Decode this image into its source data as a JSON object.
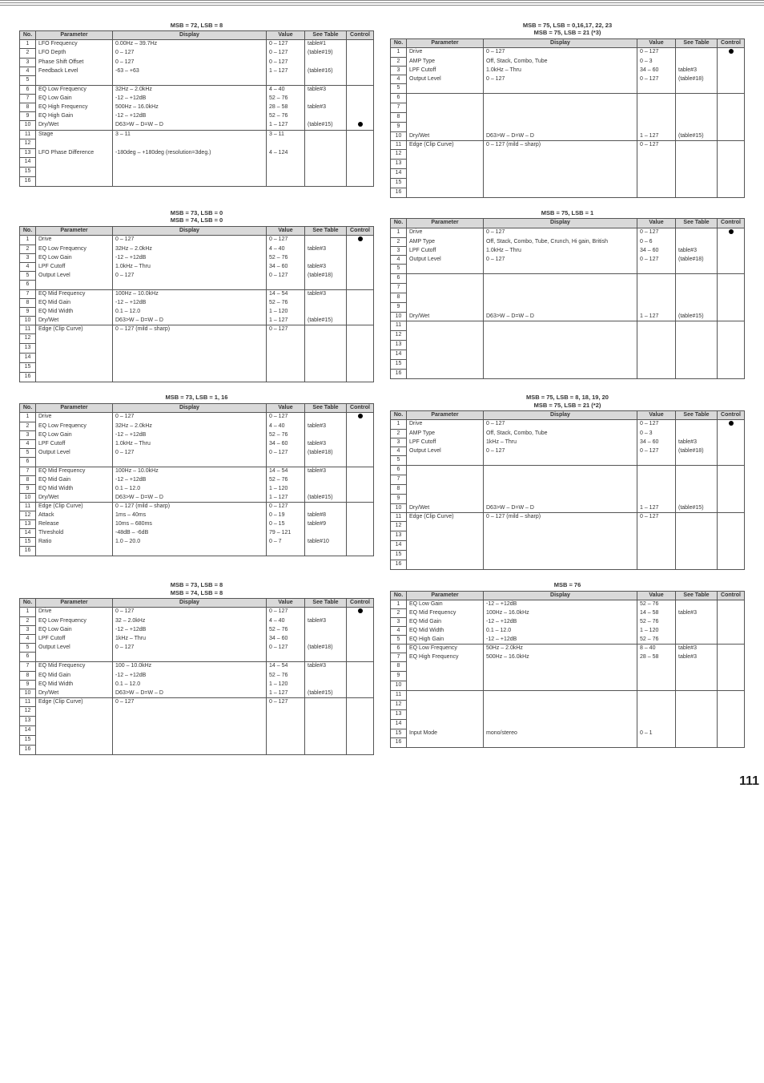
{
  "page_number": "111",
  "hdr": {
    "no": "No.",
    "param": "Parameter",
    "display": "Display",
    "value": "Value",
    "see": "See Table",
    "ctrl": "Control"
  },
  "t72_8": {
    "title": "MSB = 72, LSB = 8",
    "rows": [
      {
        "n": "1",
        "p": "LFO Frequency",
        "d": "0.00Hz – 39.7Hz",
        "v": "0 – 127",
        "s": "table#1",
        "c": ""
      },
      {
        "n": "2",
        "p": "LFO Depth",
        "d": "0 – 127",
        "v": "0 – 127",
        "s": "(table#19)",
        "c": ""
      },
      {
        "n": "3",
        "p": "Phase Shift Offset",
        "d": "0 – 127",
        "v": "0 – 127",
        "s": "",
        "c": ""
      },
      {
        "n": "4",
        "p": "Feedback Level",
        "d": "-63 – +63",
        "v": "1 – 127",
        "s": "(table#16)",
        "c": ""
      },
      {
        "n": "5",
        "p": "",
        "d": "",
        "v": "",
        "s": "",
        "c": "",
        "sep": true
      },
      {
        "n": "6",
        "p": "EQ Low Frequency",
        "d": "32Hz – 2.0kHz",
        "v": "4 – 40",
        "s": "table#3",
        "c": ""
      },
      {
        "n": "7",
        "p": "EQ Low Gain",
        "d": "-12 – +12dB",
        "v": "52 – 76",
        "s": "",
        "c": ""
      },
      {
        "n": "8",
        "p": "EQ High Frequency",
        "d": "500Hz – 16.0kHz",
        "v": "28 – 58",
        "s": "table#3",
        "c": ""
      },
      {
        "n": "9",
        "p": "EQ High Gain",
        "d": "-12 – +12dB",
        "v": "52 – 76",
        "s": "",
        "c": ""
      },
      {
        "n": "10",
        "p": "Dry/Wet",
        "d": "D63>W – D=W – D<W63",
        "v": "1 – 127",
        "s": "(table#15)",
        "c": "●",
        "sep": true
      },
      {
        "n": "11",
        "p": "Stage",
        "d": "3 – 11",
        "v": "3 – 11",
        "s": "",
        "c": ""
      },
      {
        "n": "12",
        "p": "",
        "d": "",
        "v": "",
        "s": "",
        "c": ""
      },
      {
        "n": "13",
        "p": "LFO Phase Difference",
        "d": "-180deg – +180deg (resolution=3deg.)",
        "v": "4 – 124",
        "s": "",
        "c": ""
      },
      {
        "n": "14",
        "p": "",
        "d": "",
        "v": "",
        "s": "",
        "c": ""
      },
      {
        "n": "15",
        "p": "",
        "d": "",
        "v": "",
        "s": "",
        "c": ""
      },
      {
        "n": "16",
        "p": "",
        "d": "",
        "v": "",
        "s": "",
        "c": ""
      }
    ]
  },
  "t75_0_16": {
    "title1": "MSB = 75, LSB = 0,16,17, 22, 23",
    "title2": "MSB = 75, LSB = 21 (*3)",
    "rows": [
      {
        "n": "1",
        "p": "Drive",
        "d": "0 – 127",
        "v": "0 – 127",
        "s": "",
        "c": "●"
      },
      {
        "n": "2",
        "p": "AMP Type",
        "d": "Off, Stack, Combo, Tube",
        "v": "0 – 3",
        "s": "",
        "c": ""
      },
      {
        "n": "3",
        "p": "LPF Cutoff",
        "d": "1.0kHz – Thru",
        "v": "34 – 60",
        "s": "table#3",
        "c": ""
      },
      {
        "n": "4",
        "p": "Output Level",
        "d": "0 – 127",
        "v": "0 – 127",
        "s": "(table#18)",
        "c": ""
      },
      {
        "n": "5",
        "p": "",
        "d": "",
        "v": "",
        "s": "",
        "c": "",
        "sep": true
      },
      {
        "n": "6",
        "p": "",
        "d": "",
        "v": "",
        "s": "",
        "c": ""
      },
      {
        "n": "7",
        "p": "",
        "d": "",
        "v": "",
        "s": "",
        "c": ""
      },
      {
        "n": "8",
        "p": "",
        "d": "",
        "v": "",
        "s": "",
        "c": ""
      },
      {
        "n": "9",
        "p": "",
        "d": "",
        "v": "",
        "s": "",
        "c": ""
      },
      {
        "n": "10",
        "p": "Dry/Wet",
        "d": "D63>W – D=W – D<W63",
        "v": "1 – 127",
        "s": "(table#15)",
        "c": "",
        "sep": true
      },
      {
        "n": "11",
        "p": "Edge (Clip Curve)",
        "d": "0 – 127 (mild – sharp)",
        "v": "0 – 127",
        "s": "",
        "c": ""
      },
      {
        "n": "12",
        "p": "",
        "d": "",
        "v": "",
        "s": "",
        "c": ""
      },
      {
        "n": "13",
        "p": "",
        "d": "",
        "v": "",
        "s": "",
        "c": ""
      },
      {
        "n": "14",
        "p": "",
        "d": "",
        "v": "",
        "s": "",
        "c": ""
      },
      {
        "n": "15",
        "p": "",
        "d": "",
        "v": "",
        "s": "",
        "c": ""
      },
      {
        "n": "16",
        "p": "",
        "d": "",
        "v": "",
        "s": "",
        "c": ""
      }
    ]
  },
  "t73_0": {
    "title1": "MSB = 73, LSB = 0",
    "title2": "MSB = 74, LSB = 0",
    "rows": [
      {
        "n": "1",
        "p": "Drive",
        "d": "0 – 127",
        "v": "0 – 127",
        "s": "",
        "c": "●"
      },
      {
        "n": "2",
        "p": "EQ Low Frequency",
        "d": "32Hz – 2.0kHz",
        "v": "4 – 40",
        "s": "table#3",
        "c": ""
      },
      {
        "n": "3",
        "p": "EQ Low Gain",
        "d": "-12 – +12dB",
        "v": "52 – 76",
        "s": "",
        "c": ""
      },
      {
        "n": "4",
        "p": "LPF Cutoff",
        "d": "1.0kHz – Thru",
        "v": "34 – 60",
        "s": "table#3",
        "c": ""
      },
      {
        "n": "5",
        "p": "Output Level",
        "d": "0 – 127",
        "v": "0 – 127",
        "s": "(table#18)",
        "c": ""
      },
      {
        "n": "6",
        "p": "",
        "d": "",
        "v": "",
        "s": "",
        "c": "",
        "sep": true
      },
      {
        "n": "7",
        "p": "EQ Mid Frequency",
        "d": "100Hz – 10.0kHz",
        "v": "14 – 54",
        "s": "table#3",
        "c": ""
      },
      {
        "n": "8",
        "p": "EQ Mid Gain",
        "d": "-12 – +12dB",
        "v": "52 – 76",
        "s": "",
        "c": ""
      },
      {
        "n": "9",
        "p": "EQ Mid Width",
        "d": "0.1 – 12.0",
        "v": "1 – 120",
        "s": "",
        "c": ""
      },
      {
        "n": "10",
        "p": "Dry/Wet",
        "d": "D63>W – D=W – D<W63",
        "v": "1 – 127",
        "s": "(table#15)",
        "c": "",
        "sep": true
      },
      {
        "n": "11",
        "p": "Edge (Clip Curve)",
        "d": "0 – 127 (mild – sharp)",
        "v": "0 – 127",
        "s": "",
        "c": ""
      },
      {
        "n": "12",
        "p": "",
        "d": "",
        "v": "",
        "s": "",
        "c": ""
      },
      {
        "n": "13",
        "p": "",
        "d": "",
        "v": "",
        "s": "",
        "c": ""
      },
      {
        "n": "14",
        "p": "",
        "d": "",
        "v": "",
        "s": "",
        "c": ""
      },
      {
        "n": "15",
        "p": "",
        "d": "",
        "v": "",
        "s": "",
        "c": ""
      },
      {
        "n": "16",
        "p": "",
        "d": "",
        "v": "",
        "s": "",
        "c": ""
      }
    ]
  },
  "t75_1": {
    "title": "MSB = 75, LSB = 1",
    "rows": [
      {
        "n": "1",
        "p": "Drive",
        "d": "0 – 127",
        "v": "0 – 127",
        "s": "",
        "c": "●"
      },
      {
        "n": "2",
        "p": "AMP Type",
        "d": "Off, Stack, Combo, Tube, Crunch, Hi gain, British",
        "v": "0 – 6",
        "s": "",
        "c": ""
      },
      {
        "n": "3",
        "p": "LPF Cutoff",
        "d": "1.0kHz – Thru",
        "v": "34 – 60",
        "s": "table#3",
        "c": ""
      },
      {
        "n": "4",
        "p": "Output Level",
        "d": "0 – 127",
        "v": "0 – 127",
        "s": "(table#18)",
        "c": ""
      },
      {
        "n": "5",
        "p": "",
        "d": "",
        "v": "",
        "s": "",
        "c": "",
        "sep": true
      },
      {
        "n": "6",
        "p": "",
        "d": "",
        "v": "",
        "s": "",
        "c": ""
      },
      {
        "n": "7",
        "p": "",
        "d": "",
        "v": "",
        "s": "",
        "c": ""
      },
      {
        "n": "8",
        "p": "",
        "d": "",
        "v": "",
        "s": "",
        "c": ""
      },
      {
        "n": "9",
        "p": "",
        "d": "",
        "v": "",
        "s": "",
        "c": ""
      },
      {
        "n": "10",
        "p": "Dry/Wet",
        "d": "D63>W – D=W – D<W63",
        "v": "1 – 127",
        "s": "(table#15)",
        "c": "",
        "sep": true
      },
      {
        "n": "11",
        "p": "",
        "d": "",
        "v": "",
        "s": "",
        "c": ""
      },
      {
        "n": "12",
        "p": "",
        "d": "",
        "v": "",
        "s": "",
        "c": ""
      },
      {
        "n": "13",
        "p": "",
        "d": "",
        "v": "",
        "s": "",
        "c": ""
      },
      {
        "n": "14",
        "p": "",
        "d": "",
        "v": "",
        "s": "",
        "c": ""
      },
      {
        "n": "15",
        "p": "",
        "d": "",
        "v": "",
        "s": "",
        "c": ""
      },
      {
        "n": "16",
        "p": "",
        "d": "",
        "v": "",
        "s": "",
        "c": ""
      }
    ]
  },
  "t73_1": {
    "title": "MSB = 73, LSB = 1, 16",
    "rows": [
      {
        "n": "1",
        "p": "Drive",
        "d": "0 – 127",
        "v": "0 – 127",
        "s": "",
        "c": "●"
      },
      {
        "n": "2",
        "p": "EQ Low Frequency",
        "d": "32Hz – 2.0kHz",
        "v": "4 – 40",
        "s": "table#3",
        "c": ""
      },
      {
        "n": "3",
        "p": "EQ Low Gain",
        "d": "-12 – +12dB",
        "v": "52 – 76",
        "s": "",
        "c": ""
      },
      {
        "n": "4",
        "p": "LPF Cutoff",
        "d": "1.0kHz – Thru",
        "v": "34 – 60",
        "s": "table#3",
        "c": ""
      },
      {
        "n": "5",
        "p": "Output Level",
        "d": "0 – 127",
        "v": "0 – 127",
        "s": "(table#18)",
        "c": ""
      },
      {
        "n": "6",
        "p": "",
        "d": "",
        "v": "",
        "s": "",
        "c": "",
        "sep": true
      },
      {
        "n": "7",
        "p": "EQ Mid Frequency",
        "d": "100Hz – 10.0kHz",
        "v": "14 – 54",
        "s": "table#3",
        "c": ""
      },
      {
        "n": "8",
        "p": "EQ Mid Gain",
        "d": "-12 – +12dB",
        "v": "52 – 76",
        "s": "",
        "c": ""
      },
      {
        "n": "9",
        "p": "EQ Mid Width",
        "d": "0.1 – 12.0",
        "v": "1 – 120",
        "s": "",
        "c": ""
      },
      {
        "n": "10",
        "p": "Dry/Wet",
        "d": "D63>W – D=W – D<W63",
        "v": "1 – 127",
        "s": "(table#15)",
        "c": "",
        "sep": true
      },
      {
        "n": "11",
        "p": "Edge (Clip Curve)",
        "d": "0 – 127 (mild – sharp)",
        "v": "0 – 127",
        "s": "",
        "c": ""
      },
      {
        "n": "12",
        "p": "Attack",
        "d": "1ms – 40ms",
        "v": "0 – 19",
        "s": "table#8",
        "c": ""
      },
      {
        "n": "13",
        "p": "Release",
        "d": "10ms – 680ms",
        "v": "0 – 15",
        "s": "table#9",
        "c": ""
      },
      {
        "n": "14",
        "p": "Threshold",
        "d": "-48dB – -6dB",
        "v": "79 – 121",
        "s": "",
        "c": ""
      },
      {
        "n": "15",
        "p": "Ratio",
        "d": "1.0 – 20.0",
        "v": "0 – 7",
        "s": "table#10",
        "c": ""
      },
      {
        "n": "16",
        "p": "",
        "d": "",
        "v": "",
        "s": "",
        "c": ""
      }
    ]
  },
  "t75_8": {
    "title1": "MSB = 75, LSB = 8, 18, 19, 20",
    "title2": "MSB = 75, LSB = 21 (*2)",
    "rows": [
      {
        "n": "1",
        "p": "Drive",
        "d": "0 – 127",
        "v": "0 – 127",
        "s": "",
        "c": "●"
      },
      {
        "n": "2",
        "p": "AMP Type",
        "d": "Off, Stack, Combo, Tube",
        "v": "0 – 3",
        "s": "",
        "c": ""
      },
      {
        "n": "3",
        "p": "LPF Cutoff",
        "d": "1kHz – Thru",
        "v": "34 – 60",
        "s": "table#3",
        "c": ""
      },
      {
        "n": "4",
        "p": "Output Level",
        "d": "0 – 127",
        "v": "0 – 127",
        "s": "(table#18)",
        "c": ""
      },
      {
        "n": "5",
        "p": "",
        "d": "",
        "v": "",
        "s": "",
        "c": "",
        "sep": true
      },
      {
        "n": "6",
        "p": "",
        "d": "",
        "v": "",
        "s": "",
        "c": ""
      },
      {
        "n": "7",
        "p": "",
        "d": "",
        "v": "",
        "s": "",
        "c": ""
      },
      {
        "n": "8",
        "p": "",
        "d": "",
        "v": "",
        "s": "",
        "c": ""
      },
      {
        "n": "9",
        "p": "",
        "d": "",
        "v": "",
        "s": "",
        "c": ""
      },
      {
        "n": "10",
        "p": "Dry/Wet",
        "d": "D63>W – D=W – D<W63",
        "v": "1 – 127",
        "s": "(table#15)",
        "c": "",
        "sep": true
      },
      {
        "n": "11",
        "p": "Edge (Clip Curve)",
        "d": "0 – 127 (mild – sharp)",
        "v": "0 – 127",
        "s": "",
        "c": ""
      },
      {
        "n": "12",
        "p": "",
        "d": "",
        "v": "",
        "s": "",
        "c": ""
      },
      {
        "n": "13",
        "p": "",
        "d": "",
        "v": "",
        "s": "",
        "c": ""
      },
      {
        "n": "14",
        "p": "",
        "d": "",
        "v": "",
        "s": "",
        "c": ""
      },
      {
        "n": "15",
        "p": "",
        "d": "",
        "v": "",
        "s": "",
        "c": ""
      },
      {
        "n": "16",
        "p": "",
        "d": "",
        "v": "",
        "s": "",
        "c": ""
      }
    ]
  },
  "t73_8": {
    "title1": "MSB = 73, LSB = 8",
    "title2": "MSB = 74, LSB = 8",
    "rows": [
      {
        "n": "1",
        "p": "Drive",
        "d": "0 – 127",
        "v": "0 – 127",
        "s": "",
        "c": "●"
      },
      {
        "n": "2",
        "p": "EQ Low Frequency",
        "d": "32 – 2.0kHz",
        "v": "4 – 40",
        "s": "table#3",
        "c": ""
      },
      {
        "n": "3",
        "p": "EQ Low Gain",
        "d": "-12 – +12dB",
        "v": "52 – 76",
        "s": "",
        "c": ""
      },
      {
        "n": "4",
        "p": "LPF Cutoff",
        "d": "1kHz – Thru",
        "v": "34 – 60",
        "s": "",
        "c": ""
      },
      {
        "n": "5",
        "p": "Output Level",
        "d": "0 – 127",
        "v": "0 – 127",
        "s": "(table#18)",
        "c": ""
      },
      {
        "n": "6",
        "p": "",
        "d": "",
        "v": "",
        "s": "",
        "c": "",
        "sep": true
      },
      {
        "n": "7",
        "p": "EQ Mid Frequency",
        "d": "100 – 10.0kHz",
        "v": "14 – 54",
        "s": "table#3",
        "c": ""
      },
      {
        "n": "8",
        "p": "EQ Mid Gain",
        "d": "-12 – +12dB",
        "v": "52 – 76",
        "s": "",
        "c": ""
      },
      {
        "n": "9",
        "p": "EQ Mid Width",
        "d": "0.1 – 12.0",
        "v": "1 – 120",
        "s": "",
        "c": ""
      },
      {
        "n": "10",
        "p": "Dry/Wet",
        "d": "D63>W – D=W – D<W63",
        "v": "1 – 127",
        "s": "(table#15)",
        "c": "",
        "sep": true
      },
      {
        "n": "11",
        "p": "Edge (Clip Curve)",
        "d": "0 – 127",
        "v": "0 – 127",
        "s": "",
        "c": ""
      },
      {
        "n": "12",
        "p": "",
        "d": "",
        "v": "",
        "s": "",
        "c": ""
      },
      {
        "n": "13",
        "p": "",
        "d": "",
        "v": "",
        "s": "",
        "c": ""
      },
      {
        "n": "14",
        "p": "",
        "d": "",
        "v": "",
        "s": "",
        "c": ""
      },
      {
        "n": "15",
        "p": "",
        "d": "",
        "v": "",
        "s": "",
        "c": ""
      },
      {
        "n": "16",
        "p": "",
        "d": "",
        "v": "",
        "s": "",
        "c": ""
      }
    ]
  },
  "t76": {
    "title": "MSB = 76",
    "rows": [
      {
        "n": "1",
        "p": "EQ Low Gain",
        "d": "-12 – +12dB",
        "v": "52 – 76",
        "s": "",
        "c": ""
      },
      {
        "n": "2",
        "p": "EQ Mid Frequency",
        "d": "100Hz – 16.0kHz",
        "v": "14 – 58",
        "s": "table#3",
        "c": ""
      },
      {
        "n": "3",
        "p": "EQ Mid Gain",
        "d": "-12 – +12dB",
        "v": "52 – 76",
        "s": "",
        "c": ""
      },
      {
        "n": "4",
        "p": "EQ Mid Width",
        "d": "0.1 – 12.0",
        "v": "1 – 120",
        "s": "",
        "c": ""
      },
      {
        "n": "5",
        "p": "EQ High Gain",
        "d": "-12 – +12dB",
        "v": "52 – 76",
        "s": "",
        "c": "",
        "sep": true
      },
      {
        "n": "6",
        "p": "EQ Low Frequency",
        "d": "50Hz – 2.0kHz",
        "v": "8 – 40",
        "s": "table#3",
        "c": ""
      },
      {
        "n": "7",
        "p": "EQ High Frequency",
        "d": "500Hz – 16.0kHz",
        "v": "28 – 58",
        "s": "table#3",
        "c": ""
      },
      {
        "n": "8",
        "p": "",
        "d": "",
        "v": "",
        "s": "",
        "c": ""
      },
      {
        "n": "9",
        "p": "",
        "d": "",
        "v": "",
        "s": "",
        "c": ""
      },
      {
        "n": "10",
        "p": "",
        "d": "",
        "v": "",
        "s": "",
        "c": "",
        "sep": true
      },
      {
        "n": "11",
        "p": "",
        "d": "",
        "v": "",
        "s": "",
        "c": ""
      },
      {
        "n": "12",
        "p": "",
        "d": "",
        "v": "",
        "s": "",
        "c": ""
      },
      {
        "n": "13",
        "p": "",
        "d": "",
        "v": "",
        "s": "",
        "c": ""
      },
      {
        "n": "14",
        "p": "",
        "d": "",
        "v": "",
        "s": "",
        "c": ""
      },
      {
        "n": "15",
        "p": "Input Mode",
        "d": "mono/stereo",
        "v": "0 – 1",
        "s": "",
        "c": ""
      },
      {
        "n": "16",
        "p": "",
        "d": "",
        "v": "",
        "s": "",
        "c": ""
      }
    ]
  }
}
